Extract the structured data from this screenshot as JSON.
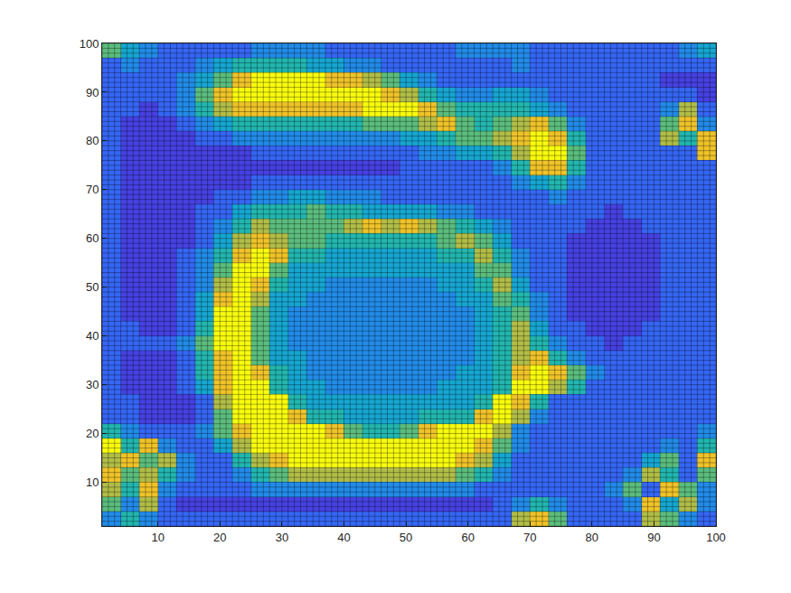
{
  "chart_data": {
    "type": "heatmap",
    "x": [
      2.5,
      5.5,
      8.5,
      11.5,
      14.5,
      17.5,
      20.5,
      23.5,
      26.5,
      29.5,
      32.5,
      35.5,
      38.5,
      41.5,
      44.5,
      47.5,
      50.5,
      53.5,
      56.5,
      59.5,
      62.5,
      65.5,
      68.5,
      71.5,
      74.5,
      77.5,
      80.5,
      83.5,
      86.5,
      89.5,
      92.5,
      95.5,
      98.5
    ],
    "y": [
      2.5,
      5.5,
      8.5,
      11.5,
      14.5,
      17.5,
      20.5,
      23.5,
      26.5,
      29.5,
      32.5,
      35.5,
      38.5,
      41.5,
      44.5,
      47.5,
      50.5,
      53.5,
      56.5,
      59.5,
      62.5,
      65.5,
      68.5,
      71.5,
      74.5,
      77.5,
      80.5,
      83.5,
      86.5,
      89.5,
      92.5,
      95.5,
      98.5
    ],
    "z": [
      [
        3,
        5,
        3,
        2,
        2,
        2,
        2,
        2,
        2,
        2,
        2,
        2,
        2,
        2,
        2,
        2,
        2,
        2,
        2,
        2,
        2,
        2,
        7,
        8,
        6,
        2,
        2,
        2,
        2,
        7,
        6,
        3,
        2
      ],
      [
        6,
        3,
        7,
        2,
        1,
        1,
        1,
        1,
        1,
        1,
        1,
        1,
        1,
        1,
        1,
        1,
        1,
        1,
        1,
        1,
        1,
        2,
        3,
        5,
        3,
        2,
        2,
        2,
        3,
        8,
        4,
        7,
        3
      ],
      [
        7,
        5,
        8,
        3,
        2,
        2,
        2,
        2,
        3,
        3,
        3,
        3,
        3,
        3,
        3,
        3,
        3,
        3,
        3,
        3,
        2,
        2,
        2,
        2,
        2,
        2,
        2,
        3,
        6,
        2,
        8,
        6,
        3
      ],
      [
        8,
        6,
        7,
        5,
        3,
        2,
        2,
        3,
        5,
        6,
        7,
        7,
        7,
        7,
        7,
        7,
        7,
        7,
        7,
        6,
        5,
        3,
        2,
        2,
        2,
        2,
        2,
        2,
        3,
        7,
        5,
        2,
        6
      ],
      [
        7,
        8,
        6,
        7,
        3,
        2,
        2,
        5,
        7,
        8,
        9,
        9,
        9,
        9,
        9,
        9,
        9,
        9,
        9,
        8,
        7,
        4,
        2,
        2,
        2,
        2,
        2,
        2,
        2,
        4,
        6,
        2,
        8
      ],
      [
        9,
        5,
        8,
        3,
        2,
        2,
        4,
        7,
        9,
        9,
        9,
        9,
        9,
        9,
        9,
        9,
        9,
        9,
        9,
        9,
        8,
        6,
        3,
        2,
        2,
        2,
        2,
        2,
        2,
        2,
        3,
        2,
        5
      ],
      [
        5,
        3,
        2,
        2,
        2,
        3,
        6,
        8,
        9,
        9,
        9,
        9,
        8,
        6,
        5,
        5,
        6,
        8,
        9,
        9,
        9,
        7,
        3,
        2,
        2,
        2,
        2,
        2,
        2,
        2,
        2,
        2,
        3
      ],
      [
        2,
        2,
        1,
        1,
        1,
        2,
        6,
        9,
        9,
        9,
        8,
        5,
        5,
        4,
        4,
        4,
        4,
        5,
        5,
        5,
        8,
        9,
        7,
        3,
        2,
        2,
        2,
        2,
        2,
        2,
        2,
        2,
        2
      ],
      [
        2,
        2,
        1,
        1,
        1,
        2,
        7,
        9,
        9,
        9,
        5,
        4,
        4,
        4,
        4,
        4,
        4,
        4,
        4,
        4,
        5,
        9,
        8,
        5,
        2,
        2,
        2,
        2,
        2,
        2,
        2,
        2,
        2
      ],
      [
        2,
        1,
        1,
        1,
        2,
        4,
        8,
        9,
        9,
        5,
        4,
        4,
        3,
        3,
        3,
        3,
        3,
        3,
        4,
        4,
        4,
        5,
        9,
        9,
        7,
        5,
        2,
        2,
        2,
        2,
        2,
        2,
        2
      ],
      [
        2,
        1,
        1,
        1,
        2,
        5,
        8,
        9,
        8,
        5,
        4,
        3,
        3,
        3,
        3,
        3,
        3,
        3,
        3,
        4,
        4,
        5,
        8,
        9,
        8,
        6,
        3,
        2,
        2,
        2,
        2,
        2,
        2
      ],
      [
        2,
        1,
        1,
        1,
        2,
        5,
        8,
        9,
        6,
        4,
        4,
        3,
        3,
        3,
        3,
        3,
        3,
        3,
        3,
        3,
        4,
        5,
        7,
        8,
        5,
        3,
        2,
        2,
        2,
        2,
        2,
        2,
        2
      ],
      [
        2,
        2,
        2,
        2,
        3,
        6,
        9,
        9,
        6,
        4,
        3,
        3,
        3,
        3,
        3,
        3,
        3,
        3,
        3,
        3,
        4,
        5,
        7,
        5,
        3,
        2,
        2,
        1,
        2,
        2,
        2,
        2,
        2
      ],
      [
        2,
        2,
        1,
        1,
        2,
        5,
        9,
        9,
        6,
        4,
        3,
        3,
        3,
        3,
        3,
        3,
        3,
        3,
        3,
        3,
        4,
        5,
        7,
        4,
        2,
        2,
        1,
        1,
        1,
        2,
        2,
        2,
        2
      ],
      [
        2,
        1,
        1,
        1,
        2,
        4,
        9,
        9,
        6,
        4,
        3,
        3,
        3,
        3,
        3,
        3,
        3,
        3,
        3,
        3,
        4,
        5,
        6,
        3,
        2,
        1,
        1,
        1,
        1,
        1,
        2,
        2,
        2
      ],
      [
        2,
        1,
        1,
        1,
        2,
        4,
        8,
        9,
        7,
        4,
        4,
        3,
        3,
        3,
        3,
        3,
        3,
        3,
        3,
        4,
        4,
        6,
        5,
        3,
        2,
        1,
        1,
        1,
        1,
        1,
        2,
        2,
        2
      ],
      [
        2,
        1,
        1,
        1,
        2,
        3,
        7,
        9,
        8,
        5,
        4,
        4,
        3,
        3,
        3,
        3,
        3,
        3,
        4,
        4,
        5,
        7,
        4,
        2,
        2,
        1,
        1,
        1,
        1,
        1,
        2,
        2,
        2
      ],
      [
        2,
        1,
        1,
        1,
        2,
        3,
        6,
        9,
        9,
        6,
        4,
        4,
        4,
        4,
        4,
        4,
        4,
        4,
        4,
        4,
        6,
        6,
        3,
        2,
        2,
        1,
        1,
        1,
        1,
        1,
        2,
        2,
        2
      ],
      [
        2,
        1,
        1,
        1,
        2,
        3,
        5,
        8,
        9,
        8,
        5,
        5,
        4,
        4,
        4,
        4,
        4,
        4,
        5,
        5,
        7,
        5,
        3,
        2,
        2,
        1,
        1,
        1,
        1,
        1,
        2,
        2,
        2
      ],
      [
        2,
        1,
        1,
        1,
        1,
        2,
        4,
        7,
        8,
        7,
        6,
        6,
        5,
        5,
        5,
        5,
        5,
        5,
        6,
        7,
        6,
        4,
        2,
        2,
        2,
        1,
        1,
        1,
        1,
        1,
        2,
        2,
        2
      ],
      [
        2,
        1,
        1,
        1,
        1,
        2,
        3,
        5,
        7,
        6,
        6,
        6,
        6,
        7,
        8,
        7,
        8,
        7,
        6,
        5,
        4,
        3,
        2,
        2,
        2,
        2,
        1,
        1,
        1,
        2,
        2,
        2,
        2
      ],
      [
        2,
        1,
        1,
        1,
        1,
        2,
        2,
        4,
        5,
        5,
        5,
        6,
        5,
        5,
        4,
        4,
        4,
        4,
        3,
        3,
        2,
        2,
        2,
        2,
        2,
        2,
        2,
        1,
        2,
        2,
        2,
        2,
        2
      ],
      [
        2,
        1,
        1,
        1,
        1,
        1,
        2,
        2,
        3,
        3,
        4,
        4,
        3,
        3,
        3,
        2,
        2,
        2,
        2,
        2,
        2,
        2,
        2,
        2,
        3,
        2,
        2,
        2,
        2,
        2,
        2,
        2,
        2
      ],
      [
        2,
        1,
        1,
        1,
        1,
        1,
        1,
        1,
        2,
        2,
        2,
        2,
        2,
        2,
        2,
        2,
        2,
        2,
        2,
        2,
        2,
        2,
        3,
        4,
        5,
        3,
        2,
        2,
        2,
        2,
        2,
        2,
        2
      ],
      [
        2,
        1,
        1,
        1,
        1,
        1,
        1,
        1,
        1,
        1,
        1,
        1,
        1,
        1,
        1,
        1,
        2,
        2,
        2,
        2,
        2,
        3,
        5,
        8,
        8,
        5,
        2,
        2,
        2,
        2,
        2,
        2,
        2
      ],
      [
        2,
        1,
        1,
        1,
        1,
        1,
        1,
        1,
        2,
        2,
        2,
        2,
        2,
        2,
        2,
        2,
        2,
        3,
        3,
        4,
        4,
        5,
        7,
        9,
        9,
        6,
        2,
        2,
        2,
        2,
        2,
        2,
        8
      ],
      [
        2,
        1,
        1,
        1,
        1,
        2,
        2,
        3,
        3,
        3,
        3,
        3,
        3,
        3,
        3,
        3,
        4,
        4,
        5,
        6,
        6,
        7,
        8,
        9,
        8,
        5,
        2,
        2,
        2,
        2,
        7,
        5,
        8
      ],
      [
        2,
        1,
        1,
        1,
        2,
        3,
        4,
        5,
        5,
        5,
        5,
        5,
        5,
        5,
        6,
        6,
        6,
        7,
        8,
        6,
        5,
        6,
        7,
        8,
        6,
        3,
        2,
        2,
        2,
        2,
        6,
        8,
        3
      ],
      [
        2,
        2,
        1,
        2,
        3,
        5,
        7,
        8,
        8,
        8,
        8,
        8,
        8,
        8,
        9,
        9,
        9,
        8,
        6,
        5,
        5,
        5,
        5,
        4,
        3,
        2,
        2,
        2,
        2,
        2,
        3,
        7,
        2
      ],
      [
        2,
        2,
        2,
        2,
        3,
        6,
        8,
        9,
        9,
        9,
        9,
        9,
        9,
        9,
        9,
        8,
        7,
        5,
        4,
        3,
        3,
        4,
        4,
        3,
        2,
        2,
        2,
        2,
        2,
        2,
        2,
        2,
        1
      ],
      [
        2,
        2,
        2,
        2,
        3,
        4,
        6,
        8,
        9,
        9,
        9,
        9,
        8,
        8,
        7,
        6,
        4,
        3,
        2,
        2,
        2,
        2,
        2,
        2,
        2,
        2,
        2,
        2,
        2,
        2,
        1,
        1,
        1
      ],
      [
        2,
        3,
        2,
        2,
        2,
        3,
        4,
        5,
        5,
        5,
        5,
        4,
        4,
        3,
        3,
        2,
        2,
        2,
        2,
        2,
        2,
        2,
        3,
        2,
        2,
        2,
        2,
        2,
        2,
        2,
        2,
        2,
        2
      ],
      [
        6,
        4,
        3,
        2,
        2,
        2,
        2,
        2,
        3,
        3,
        3,
        3,
        2,
        2,
        2,
        2,
        2,
        2,
        2,
        3,
        3,
        3,
        3,
        2,
        2,
        2,
        2,
        2,
        2,
        2,
        2,
        3,
        4
      ]
    ],
    "zlim": [
      0,
      9
    ],
    "xlim": [
      1,
      100
    ],
    "ylim": [
      1,
      100
    ],
    "xticks": [
      10,
      20,
      30,
      40,
      50,
      60,
      70,
      80,
      90,
      100
    ],
    "yticks": [
      10,
      20,
      30,
      40,
      50,
      60,
      70,
      80,
      90,
      100
    ]
  }
}
